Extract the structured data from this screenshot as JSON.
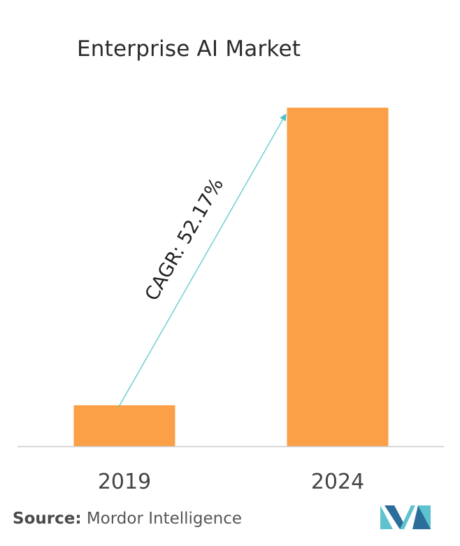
{
  "chart_data": {
    "type": "bar",
    "title": "Enterprise AI Market",
    "categories": [
      "2019",
      "2024"
    ],
    "values": [
      1,
      8.2
    ],
    "ylim": [
      0,
      8.4
    ],
    "grid": false,
    "annotation": "CAGR: 52.17%"
  },
  "colors": {
    "bar": "#fba046",
    "arrow": "#4cc3cc",
    "axis": "#cccccc",
    "logo_light": "#5fc3cf",
    "logo_dark": "#2b6e99"
  },
  "source": {
    "label": "Source:",
    "text": "Mordor Intelligence"
  },
  "logo": {
    "icon": "mordor-intelligence-logo"
  }
}
